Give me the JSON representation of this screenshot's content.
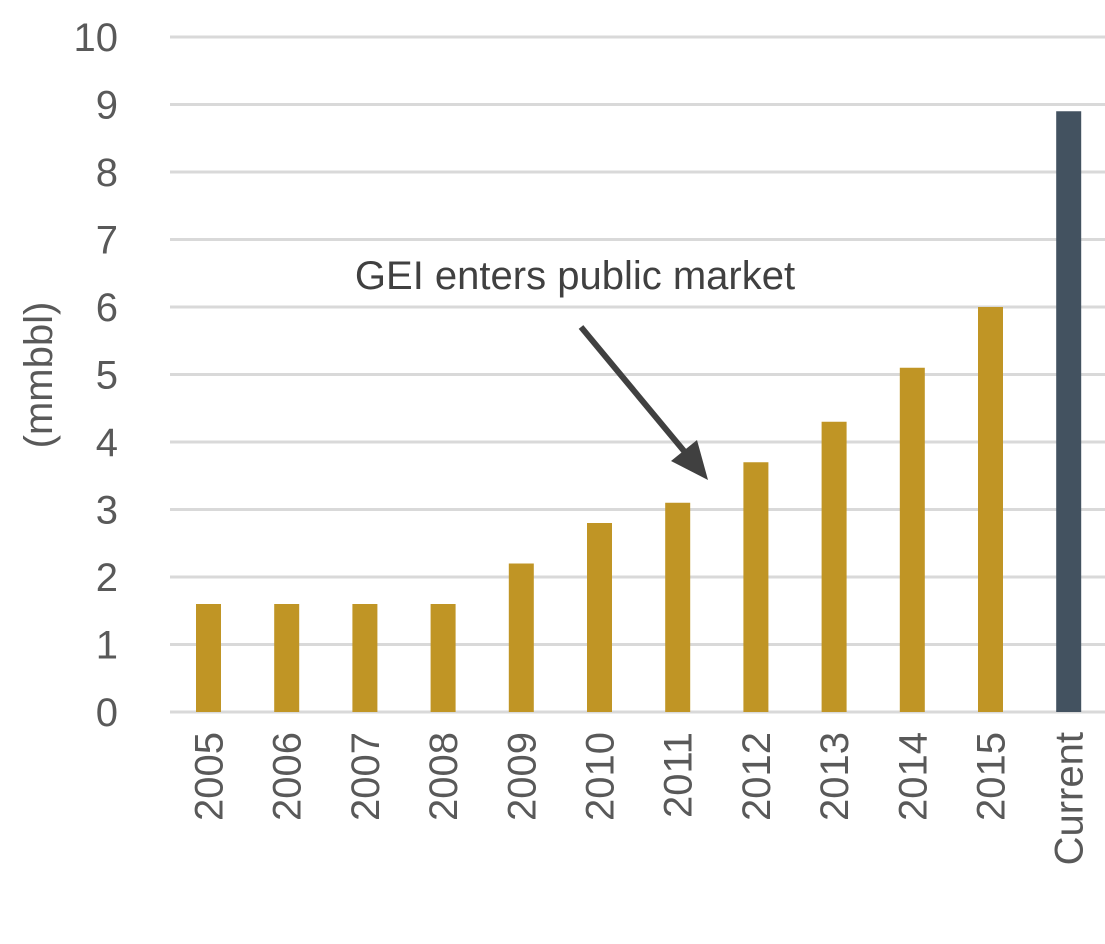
{
  "chart_data": {
    "type": "bar",
    "categories": [
      "2005",
      "2006",
      "2007",
      "2008",
      "2009",
      "2010",
      "2011",
      "2012",
      "2013",
      "2014",
      "2015",
      "Current"
    ],
    "values": [
      1.6,
      1.6,
      1.6,
      1.6,
      2.2,
      2.8,
      3.1,
      3.7,
      4.3,
      5.1,
      6.0,
      8.9
    ],
    "ylabel": "(mmbbl)",
    "xlabel": "",
    "ylim": [
      0,
      10
    ],
    "yticks": [
      "0",
      "1",
      "2",
      "3",
      "4",
      "5",
      "6",
      "7",
      "8",
      "9",
      "10"
    ],
    "grid": true,
    "legend": "none",
    "bar_colors": {
      "default": "#c09525",
      "highlight": "#435260"
    },
    "highlight_category": "Current",
    "annotation": {
      "text": "GEI enters public market",
      "points_to": "2012"
    }
  }
}
